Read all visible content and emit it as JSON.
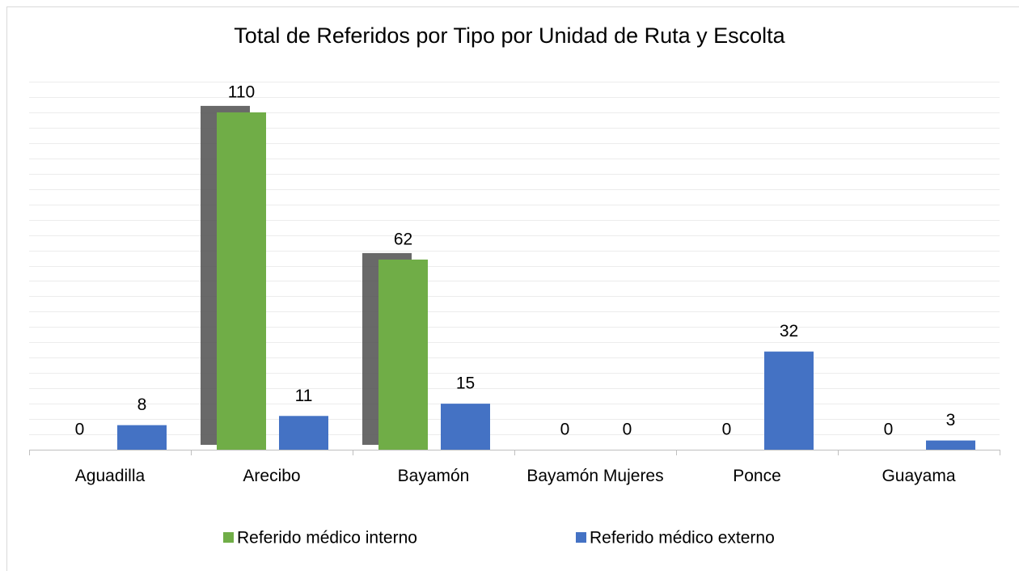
{
  "chart_data": {
    "type": "bar",
    "title": "Total de Referidos por Tipo por Unidad de Ruta y Escolta",
    "categories": [
      "Aguadilla",
      "Arecibo",
      "Bayamón",
      "Bayamón Mujeres",
      "Ponce",
      "Guayama"
    ],
    "series": [
      {
        "name": "Referido médico interno",
        "color": "#70ad47",
        "values": [
          0,
          110,
          62,
          0,
          0,
          0
        ]
      },
      {
        "name": "Referido médico externo",
        "color": "#4472c4",
        "values": [
          8,
          11,
          15,
          0,
          32,
          3
        ]
      }
    ],
    "ylim": [
      0,
      120
    ],
    "yticks": [
      0,
      5,
      10,
      15,
      20,
      25,
      30,
      35,
      40,
      45,
      50,
      55,
      60,
      65,
      70,
      75,
      80,
      85,
      90,
      95,
      100,
      105,
      110,
      115,
      120
    ],
    "grid": true,
    "legend": "bottom"
  }
}
